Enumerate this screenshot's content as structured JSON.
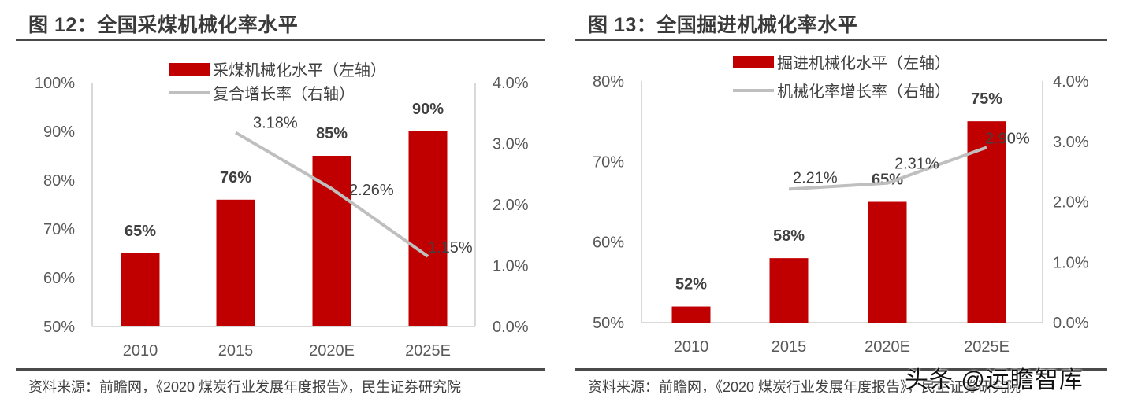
{
  "figure12": {
    "title": "图 12：全国采煤机械化率水平",
    "source": "资料来源：前瞻网，《2020 煤炭行业发展年度报告》，民生证券研究院"
  },
  "figure13": {
    "title": "图 13：全国掘进机械化率水平",
    "source": "资料来源：前瞻网，《2020 煤炭行业发展年度报告》，民生证券研究院"
  },
  "watermark": "头条 @远瞻智库",
  "colors": {
    "bar": "#C00000",
    "line": "#BFBFBF",
    "axis": "#D9D9D9",
    "text": "#404040",
    "title": "#3A3A3A"
  },
  "chart_data": [
    {
      "type": "bar+line",
      "title": "图 12：全国采煤机械化率水平",
      "categories": [
        "2010",
        "2015",
        "2020E",
        "2025E"
      ],
      "series": [
        {
          "name": "采煤机械化水平（左轴）",
          "type": "bar",
          "axis": "left",
          "values": [
            65,
            76,
            85,
            90
          ],
          "labels": [
            "65%",
            "76%",
            "85%",
            "90%"
          ]
        },
        {
          "name": "复合增长率（右轴）",
          "type": "line",
          "axis": "right",
          "values": [
            null,
            3.18,
            2.26,
            1.15
          ],
          "labels": [
            "",
            "3.18%",
            "2.26%",
            "1.15%"
          ]
        }
      ],
      "left_axis": {
        "ylim": [
          50,
          100
        ],
        "ticks": [
          "50%",
          "60%",
          "70%",
          "80%",
          "90%",
          "100%"
        ]
      },
      "right_axis": {
        "ylim": [
          0,
          4
        ],
        "ticks": [
          "0.0%",
          "1.0%",
          "2.0%",
          "3.0%",
          "4.0%"
        ]
      },
      "legend": {
        "position": "top",
        "entries": [
          "采煤机械化水平（左轴）",
          "复合增长率（右轴）"
        ]
      },
      "grid": false
    },
    {
      "type": "bar+line",
      "title": "图 13：全国掘进机械化率水平",
      "categories": [
        "2010",
        "2015",
        "2020E",
        "2025E"
      ],
      "series": [
        {
          "name": "掘进机械化水平（左轴）",
          "type": "bar",
          "axis": "left",
          "values": [
            52,
            58,
            65,
            75
          ],
          "labels": [
            "52%",
            "58%",
            "65%",
            "75%"
          ]
        },
        {
          "name": "机械化率增长率（右轴）",
          "type": "line",
          "axis": "right",
          "values": [
            null,
            2.21,
            2.31,
            2.9
          ],
          "labels": [
            "",
            "2.21%",
            "2.31%",
            "2.90%"
          ]
        }
      ],
      "left_axis": {
        "ylim": [
          50,
          80
        ],
        "ticks": [
          "50%",
          "60%",
          "70%",
          "80%"
        ]
      },
      "right_axis": {
        "ylim": [
          0,
          4
        ],
        "ticks": [
          "0.0%",
          "1.0%",
          "2.0%",
          "3.0%",
          "4.0%"
        ]
      },
      "legend": {
        "position": "top",
        "entries": [
          "掘进机械化水平（左轴）",
          "机械化率增长率（右轴）"
        ]
      },
      "grid": false
    }
  ]
}
